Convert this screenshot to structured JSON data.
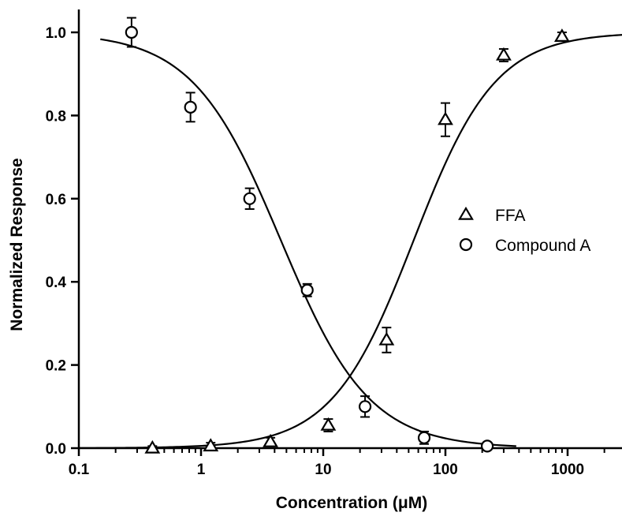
{
  "chart_data": {
    "type": "scatter",
    "x_scale": "log",
    "xlim": [
      0.1,
      3000
    ],
    "ylim": [
      0,
      1.05
    ],
    "xlabel": "Concentration (μM)",
    "ylabel": "Normalized Response",
    "x_ticks": [
      {
        "value": 0.1,
        "label": "0.1"
      },
      {
        "value": 1,
        "label": "1"
      },
      {
        "value": 10,
        "label": "10"
      },
      {
        "value": 100,
        "label": "100"
      },
      {
        "value": 1000,
        "label": "1000"
      }
    ],
    "y_ticks": [
      {
        "value": 0.0,
        "label": "0.0"
      },
      {
        "value": 0.2,
        "label": "0.2"
      },
      {
        "value": 0.4,
        "label": "0.4"
      },
      {
        "value": 0.6,
        "label": "0.6"
      },
      {
        "value": 0.8,
        "label": "0.8"
      },
      {
        "value": 1.0,
        "label": "1.0"
      }
    ],
    "grid": false,
    "legend_position": "center-right",
    "series": [
      {
        "name": "FFA",
        "marker": "triangle",
        "points": [
          {
            "x": 0.4,
            "y": 0.0,
            "err": 0.005
          },
          {
            "x": 1.2,
            "y": 0.005,
            "err": 0.008
          },
          {
            "x": 3.7,
            "y": 0.015,
            "err": 0.01
          },
          {
            "x": 11,
            "y": 0.055,
            "err": 0.015
          },
          {
            "x": 33,
            "y": 0.26,
            "err": 0.03
          },
          {
            "x": 100,
            "y": 0.79,
            "err": 0.04
          },
          {
            "x": 300,
            "y": 0.945,
            "err": 0.015
          },
          {
            "x": 900,
            "y": 0.99,
            "err": 0.01
          }
        ],
        "fit": {
          "model": "hill-increasing",
          "ec50": 55,
          "hill": 1.3,
          "x_range": [
            0.1,
            3000
          ]
        }
      },
      {
        "name": "Compound A",
        "marker": "circle",
        "points": [
          {
            "x": 0.27,
            "y": 1.0,
            "err": 0.035
          },
          {
            "x": 0.82,
            "y": 0.82,
            "err": 0.035
          },
          {
            "x": 2.5,
            "y": 0.6,
            "err": 0.025
          },
          {
            "x": 7.4,
            "y": 0.38,
            "err": 0.015
          },
          {
            "x": 22,
            "y": 0.1,
            "err": 0.025
          },
          {
            "x": 67,
            "y": 0.025,
            "err": 0.015
          },
          {
            "x": 220,
            "y": 0.005,
            "err": 0.008
          }
        ],
        "fit": {
          "model": "hill-decreasing",
          "ic50": 4.5,
          "hill": 1.2,
          "x_range": [
            0.15,
            380
          ]
        }
      }
    ]
  }
}
